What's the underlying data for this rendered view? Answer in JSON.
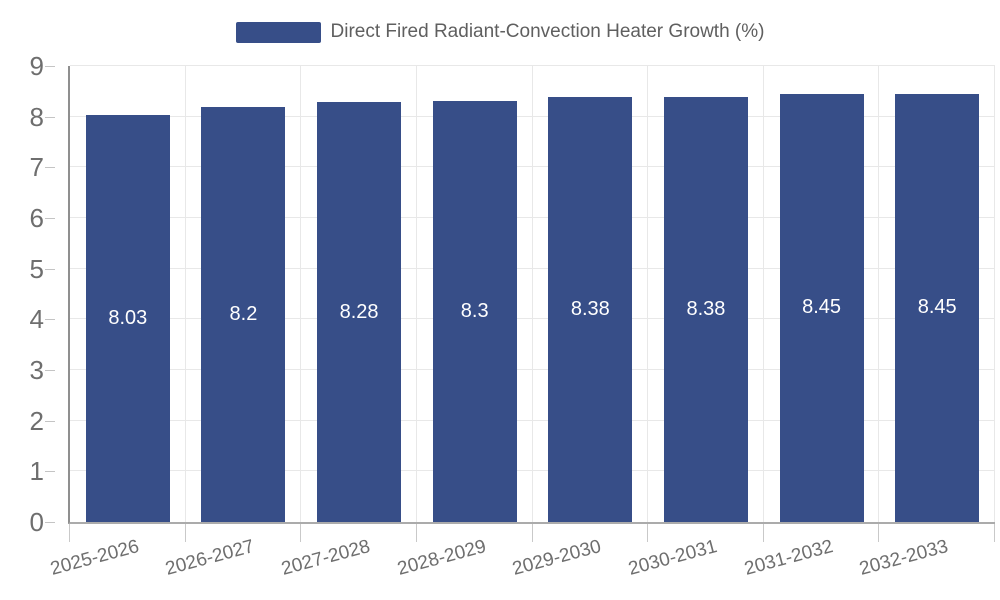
{
  "chart_data": {
    "type": "bar",
    "title": "Direct Fired Radiant-Convection Heater Growth (%)",
    "series_name": "Direct Fired Radiant-Convection Heater Growth (%)",
    "categories": [
      "2025-2026",
      "2026-2027",
      "2027-2028",
      "2028-2029",
      "2029-2030",
      "2030-2031",
      "2031-2032",
      "2032-2033"
    ],
    "values": [
      8.03,
      8.2,
      8.28,
      8.3,
      8.38,
      8.38,
      8.45,
      8.45
    ],
    "value_labels": [
      "8.03",
      "8.2",
      "8.28",
      "8.3",
      "8.38",
      "8.38",
      "8.45",
      "8.45"
    ],
    "xlabel": "",
    "ylabel": "",
    "ylim": [
      0,
      9
    ],
    "yticks": [
      0,
      1,
      2,
      3,
      4,
      5,
      6,
      7,
      8,
      9
    ],
    "grid": true,
    "legend_position": "top-center",
    "value_label_position": "inside-middle",
    "colors": {
      "bar": "#374E88",
      "value_label": "#ffffff",
      "grid": "#e8e8e8",
      "y_axis_line": "#8f8f8f",
      "x_axis_line": "#ababab",
      "tick": "#c6c6c6",
      "axis_text": "#6e6e6e",
      "legend_text": "#5f5f5f"
    }
  }
}
